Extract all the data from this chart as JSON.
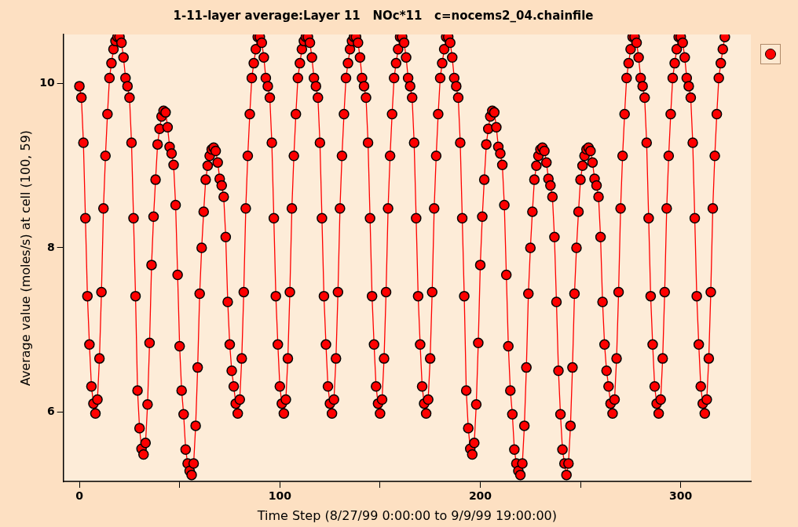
{
  "chart_data": {
    "type": "line",
    "title": "1-11-layer average:Layer 11   NOc*11   c=nocems2_04.chainfile",
    "xlabel": "Time Step (8/27/99 0:00:00 to 9/9/99 19:00:00)",
    "ylabel": "Average value (moles/s) at cell (100, 59)",
    "x": [
      0,
      1,
      2,
      3,
      4,
      5,
      6,
      7,
      8,
      9,
      10,
      11,
      12,
      13,
      14,
      15,
      16,
      17,
      18,
      19,
      20,
      21,
      22,
      23,
      24,
      25,
      26,
      27,
      28,
      29,
      30,
      31,
      32,
      33,
      34,
      35,
      36,
      37,
      38,
      39,
      40,
      41,
      42,
      43,
      44,
      45,
      46,
      47,
      48,
      49,
      50,
      51,
      52,
      53,
      54,
      55,
      56,
      57,
      58,
      59,
      60,
      61,
      62,
      63,
      64,
      65,
      66,
      67,
      68,
      69,
      70,
      71,
      72,
      73,
      74,
      75,
      76,
      77,
      78,
      79,
      80,
      81,
      82,
      83,
      84,
      85,
      86,
      87,
      88,
      89,
      90,
      91,
      92,
      93,
      94,
      95,
      96,
      97,
      98,
      99,
      100,
      101,
      102,
      103,
      104,
      105,
      106,
      107,
      108,
      109,
      110,
      111,
      112,
      113,
      114,
      115,
      116,
      117,
      118,
      119,
      120,
      121,
      122,
      123,
      124,
      125,
      126,
      127,
      128,
      129,
      130,
      131,
      132,
      133,
      134,
      135,
      136,
      137,
      138,
      139,
      140,
      141,
      142,
      143,
      144,
      145,
      146,
      147,
      148,
      149,
      150,
      151,
      152,
      153,
      154,
      155,
      156,
      157,
      158,
      159,
      160,
      161,
      162,
      163,
      164,
      165,
      166,
      167,
      168,
      169,
      170,
      171,
      172,
      173,
      174,
      175,
      176,
      177,
      178,
      179,
      180,
      181,
      182,
      183,
      184,
      185,
      186,
      187,
      188,
      189,
      190,
      191,
      192,
      193,
      194,
      195,
      196,
      197,
      198,
      199,
      200,
      201,
      202,
      203,
      204,
      205,
      206,
      207,
      208,
      209,
      210,
      211,
      212,
      213,
      214,
      215,
      216,
      217,
      218,
      219,
      220,
      221,
      222,
      223,
      224,
      225,
      226,
      227,
      228,
      229,
      230,
      231,
      232,
      233,
      234,
      235,
      236,
      237,
      238,
      239,
      240,
      241,
      242,
      243,
      244,
      245,
      246,
      247,
      248,
      249,
      250,
      251,
      252,
      253,
      254,
      255,
      256,
      257,
      258,
      259,
      260,
      261,
      262,
      263,
      264,
      265,
      266,
      267,
      268,
      269,
      270,
      271,
      272,
      273,
      274,
      275,
      276,
      277,
      278,
      279,
      280,
      281,
      282,
      283,
      284,
      285,
      286,
      287,
      288,
      289,
      290,
      291,
      292,
      293,
      294,
      295,
      296,
      297,
      298,
      299,
      300,
      301,
      302,
      303,
      304,
      305,
      306,
      307,
      308,
      309,
      310,
      311,
      312,
      313,
      314,
      315,
      316,
      317,
      318,
      319,
      320,
      321,
      322
    ],
    "series": [
      {
        "color": "#ff0000",
        "values": [
          9.97,
          9.83,
          9.28,
          8.36,
          7.41,
          6.82,
          6.31,
          6.1,
          5.98,
          6.15,
          6.65,
          7.46,
          8.48,
          9.12,
          9.63,
          10.07,
          10.25,
          10.42,
          10.52,
          10.57,
          10.57,
          10.5,
          10.32,
          10.07,
          9.97,
          9.83,
          9.28,
          8.36,
          7.41,
          6.26,
          5.8,
          5.55,
          5.48,
          5.62,
          6.09,
          6.84,
          7.79,
          8.38,
          8.83,
          9.26,
          9.45,
          9.6,
          9.67,
          9.65,
          9.47,
          9.23,
          9.15,
          9.01,
          8.52,
          7.67,
          6.8,
          6.26,
          5.97,
          5.54,
          5.37,
          5.28,
          5.23,
          5.37,
          5.83,
          6.54,
          7.44,
          8.0,
          8.44,
          8.83,
          9.0,
          9.12,
          9.2,
          9.22,
          9.18,
          9.04,
          8.84,
          8.76,
          8.62,
          8.13,
          7.34,
          6.82,
          6.5,
          6.31,
          6.1,
          5.98,
          6.15,
          6.65,
          7.46,
          8.48,
          9.12,
          9.63,
          10.07,
          10.25,
          10.42,
          10.57,
          10.57,
          10.5,
          10.32,
          10.07,
          9.97,
          9.83,
          9.28,
          8.36,
          7.41,
          6.82,
          6.31,
          6.1,
          5.98,
          6.15,
          6.65,
          7.46,
          8.48,
          9.12,
          9.63,
          10.07,
          10.25,
          10.42,
          10.52,
          10.57,
          10.57,
          10.5,
          10.32,
          10.07,
          9.97,
          9.83,
          9.28,
          8.36,
          7.41,
          6.82,
          6.31,
          6.1,
          5.98,
          6.15,
          6.65,
          7.46,
          8.48,
          9.12,
          9.63,
          10.07,
          10.25,
          10.42,
          10.52,
          10.57,
          10.57,
          10.5,
          10.32,
          10.07,
          9.97,
          9.83,
          9.28,
          8.36,
          7.41,
          6.82,
          6.31,
          6.1,
          5.98,
          6.15,
          6.65,
          7.46,
          8.48,
          9.12,
          9.63,
          10.07,
          10.25,
          10.42,
          10.57,
          10.57,
          10.5,
          10.32,
          10.07,
          9.97,
          9.83,
          9.28,
          8.36,
          7.41,
          6.82,
          6.31,
          6.1,
          5.98,
          6.15,
          6.65,
          7.46,
          8.48,
          9.12,
          9.63,
          10.07,
          10.25,
          10.42,
          10.57,
          10.57,
          10.5,
          10.32,
          10.07,
          9.97,
          9.83,
          9.28,
          8.36,
          7.41,
          6.26,
          5.8,
          5.55,
          5.48,
          5.62,
          6.09,
          6.84,
          7.79,
          8.38,
          8.83,
          9.26,
          9.45,
          9.6,
          9.67,
          9.65,
          9.47,
          9.23,
          9.15,
          9.01,
          8.52,
          7.67,
          6.8,
          6.26,
          5.97,
          5.54,
          5.37,
          5.28,
          5.23,
          5.37,
          5.83,
          6.54,
          7.44,
          8.0,
          8.44,
          8.83,
          9.0,
          9.12,
          9.2,
          9.22,
          9.18,
          9.04,
          8.84,
          8.76,
          8.62,
          8.13,
          7.34,
          6.5,
          5.97,
          5.54,
          5.37,
          5.23,
          5.37,
          5.83,
          6.54,
          7.44,
          8.0,
          8.44,
          8.83,
          9.0,
          9.12,
          9.2,
          9.22,
          9.18,
          9.04,
          8.84,
          8.76,
          8.62,
          8.13,
          7.34,
          6.82,
          6.5,
          6.31,
          6.1,
          5.98,
          6.15,
          6.65,
          7.46,
          8.48,
          9.12,
          9.63,
          10.07,
          10.25,
          10.42,
          10.57,
          10.57,
          10.5,
          10.32,
          10.07,
          9.97,
          9.83,
          9.28,
          8.36,
          7.41,
          6.82,
          6.31,
          6.1,
          5.98,
          6.15,
          6.65,
          7.46,
          8.48,
          9.12,
          9.63,
          10.07,
          10.25,
          10.42,
          10.57,
          10.57,
          10.5,
          10.32,
          10.07,
          9.97,
          9.83,
          9.28,
          8.36,
          7.41,
          6.82,
          6.31,
          6.1,
          5.98,
          6.15,
          6.65,
          7.46,
          8.48,
          9.12,
          9.63,
          10.07,
          10.25,
          10.42,
          10.57
        ]
      }
    ],
    "xlim": [
      -8,
      335
    ],
    "xticks": [
      0,
      {
        "value": 50,
        "label": null
      },
      100,
      {
        "value": 150,
        "label": null
      },
      200,
      {
        "value": 250,
        "label": null
      },
      300
    ],
    "ylim": [
      5.15,
      10.6
    ],
    "yticks": [
      6,
      8,
      10
    ],
    "marker": "circle",
    "line_style": "solid"
  }
}
